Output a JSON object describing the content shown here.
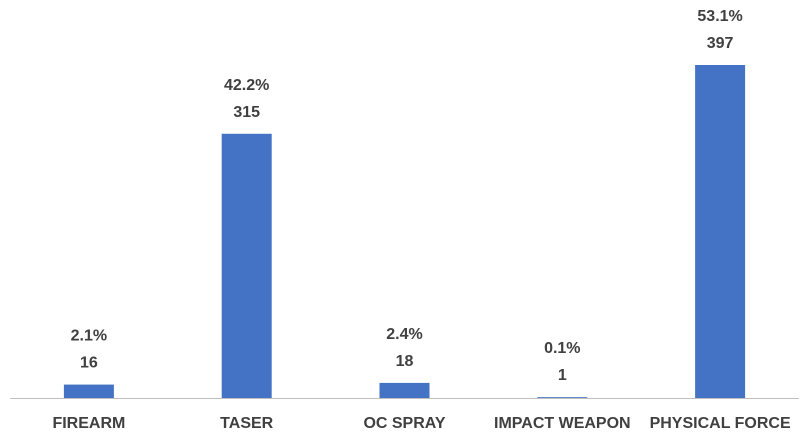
{
  "chart_data": {
    "type": "bar",
    "title": "",
    "xlabel": "",
    "ylabel": "",
    "categories": [
      "FIREARM",
      "TASER",
      "OC SPRAY",
      "IMPACT WEAPON",
      "PHYSICAL FORCE"
    ],
    "values": [
      16,
      315,
      18,
      1,
      397
    ],
    "percent_labels": [
      "2.1%",
      "42.2%",
      "2.4%",
      "0.1%",
      "53.1%"
    ],
    "ylim": [
      0,
      397
    ],
    "grid": false,
    "legend": "none",
    "colors": {
      "bar": "#4472C4",
      "axis": "#BFBFBF",
      "label_text": "#404040"
    }
  }
}
